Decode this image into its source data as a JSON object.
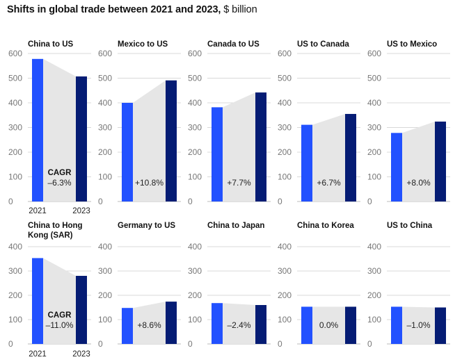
{
  "title_bold": "Shifts in global trade between 2021 and 2023,",
  "title_unit": " $ billion",
  "chart_data": {
    "type": "bar",
    "unit": "$ billion",
    "years": [
      "2021",
      "2023"
    ],
    "cagr_label": "CAGR",
    "colors": {
      "y2021": "#2251ff",
      "y2023": "#051c74",
      "band": "#e6e6e6"
    },
    "rows": [
      {
        "yticks": [
          0,
          100,
          200,
          300,
          400,
          500,
          600
        ],
        "ylim": [
          0,
          600
        ],
        "panels": [
          {
            "title": [
              "China to US"
            ],
            "values": [
              578,
              507
            ],
            "cagr": "–6.3%",
            "show_cagr_label": true,
            "show_years": true
          },
          {
            "title": [
              "Mexico to US"
            ],
            "values": [
              400,
              491
            ],
            "cagr": "+10.8%"
          },
          {
            "title": [
              "Canada to US"
            ],
            "values": [
              382,
              442
            ],
            "cagr": "+7.7%"
          },
          {
            "title": [
              "US to Canada"
            ],
            "values": [
              311,
              355
            ],
            "cagr": "+6.7%"
          },
          {
            "title": [
              "US to Mexico"
            ],
            "values": [
              278,
              324
            ],
            "cagr": "+8.0%"
          }
        ]
      },
      {
        "yticks": [
          0,
          100,
          200,
          300,
          400
        ],
        "ylim": [
          0,
          400
        ],
        "panels": [
          {
            "title": [
              "China to Hong",
              "Kong (SAR)"
            ],
            "values": [
              353,
              280
            ],
            "cagr": "–11.0%",
            "show_cagr_label": true,
            "show_years": true
          },
          {
            "title": [
              "Germany to US"
            ],
            "values": [
              148,
              174
            ],
            "cagr": "+8.6%"
          },
          {
            "title": [
              "China to Japan"
            ],
            "values": [
              168,
              160
            ],
            "cagr": "–2.4%"
          },
          {
            "title": [
              "China to Korea"
            ],
            "values": [
              153,
              153
            ],
            "cagr": "0.0%"
          },
          {
            "title": [
              "US to China"
            ],
            "values": [
              153,
              150
            ],
            "cagr": "–1.0%"
          }
        ]
      }
    ]
  }
}
